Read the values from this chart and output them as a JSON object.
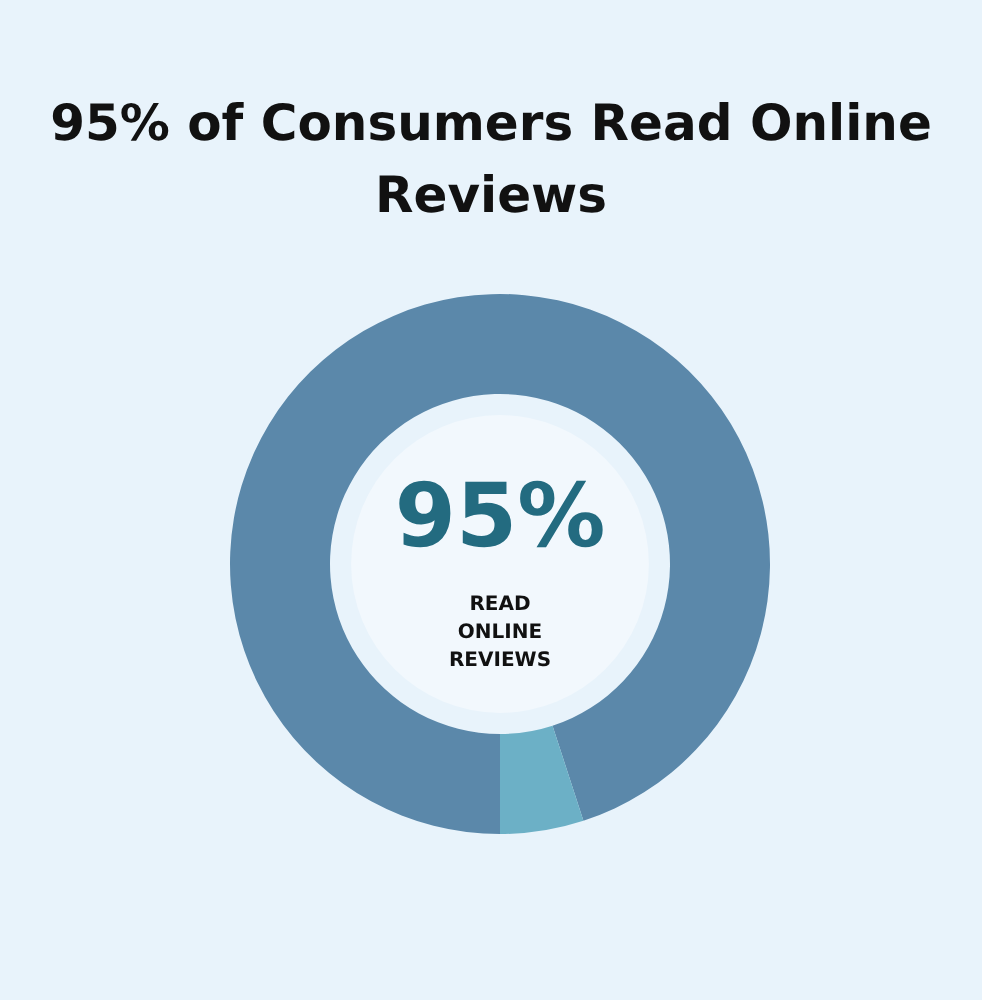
{
  "chart_data": {
    "type": "donut",
    "title": "95% of Consumers Read Online Reviews",
    "categories": [
      null,
      null
    ],
    "values": [
      95,
      5
    ],
    "colors": [
      "#5b88aa",
      "#6cb0c6"
    ],
    "annotations": [
      "95%",
      "READ ONLINE REVIEWS"
    ]
  }
}
